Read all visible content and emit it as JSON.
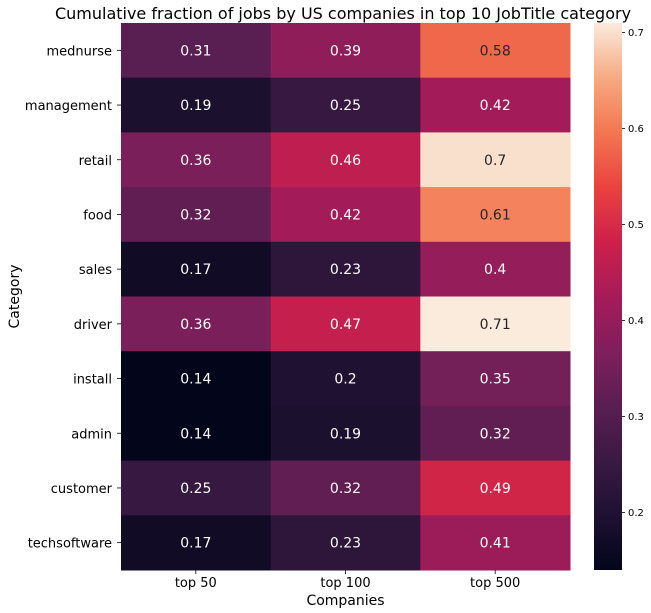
{
  "chart_data": {
    "type": "heatmap",
    "title": "Cumulative fraction of jobs by US companies in top 10 JobTitle category",
    "xlabel": "Companies",
    "ylabel": "Category",
    "x_categories": [
      "top 50",
      "top 100",
      "top 500"
    ],
    "y_categories": [
      "mednurse",
      "management",
      "retail",
      "food",
      "sales",
      "driver",
      "install",
      "admin",
      "customer",
      "techsoftware"
    ],
    "values": [
      [
        0.31,
        0.39,
        0.58
      ],
      [
        0.19,
        0.25,
        0.42
      ],
      [
        0.36,
        0.46,
        0.7
      ],
      [
        0.32,
        0.42,
        0.61
      ],
      [
        0.17,
        0.23,
        0.4
      ],
      [
        0.36,
        0.47,
        0.71
      ],
      [
        0.14,
        0.2,
        0.35
      ],
      [
        0.14,
        0.19,
        0.32
      ],
      [
        0.25,
        0.32,
        0.49
      ],
      [
        0.17,
        0.23,
        0.41
      ]
    ],
    "colorbar": {
      "range": [
        0.14,
        0.71
      ],
      "ticks": [
        "0.2",
        "0.3",
        "0.4",
        "0.5",
        "0.6",
        "0.7"
      ],
      "colormap": "rocket"
    }
  }
}
